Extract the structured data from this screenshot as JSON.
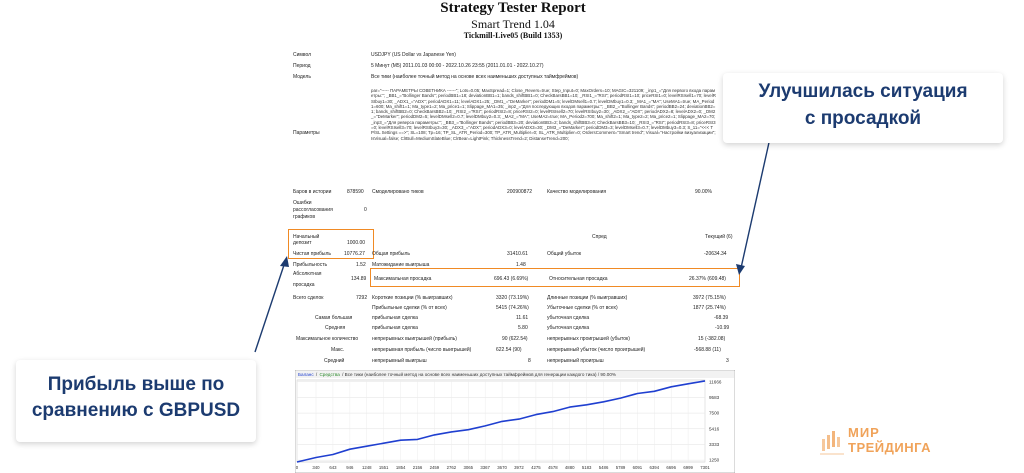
{
  "report": {
    "title": "Strategy Tester Report",
    "subtitle": "Smart Trend 1.04",
    "broker": "Tickmill-Live05 (Build 1353)"
  },
  "info": {
    "symbol_label": "Символ",
    "symbol_value": "USDJPY (US Dollar vs Japanese Yen)",
    "period_label": "Период",
    "period_value": "5 Минут (M5) 2011.01.03 00:00 - 2022.10.26 23:55 (2011.01.01 - 2022.10.27)",
    "model_label": "Модель",
    "model_value": "Все тики (наиболее точный метод на основе всех наименьших доступных таймфреймов)",
    "params_label": "Параметры",
    "params_value": "par=\"----- ПАРАМЕТРЫ СОВЕТНИКА ------\"; Lots=0.05; MaxSpread=1; Close_Revers=true; Step_Input=0; MaxOrders=10; MAGIC=321109; _inp1_=\"Для первого входа параметры:\"; _BB1_=\"Bollinger Bands\"; periodBB1=18; deviationBB1=1; bands_shiftBB1=0; CheckBarsBB1=10; _RSI1_=\"RSI\"; periodRSI1=10; priceRSI1=0; levelRSIsell1=70; levelRSIbuy1=30; _ADX1_=\"ADX\"; periodADX1=11; levelADX1=25; _DM1_=\"DeMarker\"; periodDM1=5; levelDMsell1=0.7; levelDMbuy1=0.3; _MA1_=\"MA\"; UseMA1=true; MA_Period1=600; Ma_shift1=1; Ma_type1=2; Ma_price1=1; Slippage_MA1=35; _inp2_=\"Для последующих входов параметры:\"; _BB2_=\"Bollinger Bands\"; periodBB2=24; deviationBB2=1; bands_shiftBB2=0; CheckBarsBB2=10; _RSI2_=\"RSI\"; periodRSI2=8; priceRSI2=0; levelRSIsell2=70; levelRSIbuy2=30; _ADX2_=\"ADX\"; periodADX2=8; levelADX2=0; _DM2_=\"DeMarker\"; periodDM2=5; levelDMsell2=0.7; levelDMbuy2=0.3; _MA2_=\"MA\"; UseMA2=true; MA_Period2=700; Ma_shift2=1; Ma_type2=2; Ma_price2=1; Slippage_MA2=70; _inp3_=\"Для реверса параметры:\"; _BB3_=\"Bollinger Bands\"; periodBB3=20; deviationBB3=2; bands_shiftBB3=0; CheckBarsBB3=10; _RSI3_=\"RSI\"; periodRSI3=8; priceRSI3=0; levelRSIsell3=70; levelRSIbuy3=30; _ADX3_=\"ADX\"; periodADX3=0; levelADX3=30; _DM3_=\"DeMarker\"; periodDM3=3; levelDMsell3=0.7; levelDMbuy3=0.3; S_11=\"<<< TP/SL Settings ==>\"; SL=108; Tp=16; TP_SL_ATR_Period=300; TP_ATR_Multiplier=0; SL_ATR_Multiplier=0; OrdersComment=\"Smart trend\"; Visual=\"Настройки визуализации\"; IsVisual=false; ClrBull=MediumSlateBlue; ClrBear=LightPink; ThicknessTrend=2; DistanseTrend=200;",
    "bars_label": "Баров в истории",
    "bars_value": "878590",
    "ticks_label": "Смоделировано тиков",
    "ticks_value": "200900872",
    "quality_label": "Качество моделирования",
    "quality_value": "90.00%",
    "errors_label_1": "Ошибки",
    "errors_label_2": "рассогласования",
    "errors_label_3": "графиков",
    "errors_value": "0"
  },
  "stats": {
    "deposit_label_1": "Начальный",
    "deposit_label_2": "депозит",
    "deposit_value": "1000.00",
    "spread_label": "Спред",
    "spread_value": "Текущий (6)",
    "net_profit_label": "Чистая прибыль",
    "net_profit_value": "10776.27",
    "gross_profit_label": "Общая прибыль",
    "gross_profit_value": "31410.61",
    "gross_loss_label": "Общий убыток",
    "gross_loss_value": "-20634.34",
    "profit_factor_label": "Прибыльность",
    "profit_factor_value": "1.52",
    "expected_payoff_label": "Матожидание выигрыша",
    "expected_payoff_value": "1.48",
    "abs_dd_label_1": "Абсолютная",
    "abs_dd_label_2": "просадка",
    "abs_dd_value": "134.89",
    "max_dd_label": "Максимальная просадка",
    "max_dd_value": "696.43 (6.69%)",
    "rel_dd_label": "Относительная просадка",
    "rel_dd_value": "26.37% (609.48)",
    "total_trades_label": "Всего сделок",
    "total_trades_value": "7292",
    "short_label": "Короткие позиции (% выигравших)",
    "short_value": "3320 (73.19%)",
    "long_label": "Длинные позиции (% выигравших)",
    "long_value": "3972 (75.15%)",
    "profit_trades_label": "Прибыльные сделки (% от всех)",
    "profit_trades_value": "5415 (74.26%)",
    "loss_trades_label": "Убыточные сделки (% от всех)",
    "loss_trades_value": "1877 (25.74%)",
    "largest_label": "Самая большая",
    "largest_profit_label": "прибыльная сделка",
    "largest_profit_value": "11.61",
    "largest_loss_label": "убыточная сделка",
    "largest_loss_value": "-68.39",
    "average_label": "Средняя",
    "average_profit_label": "прибыльная сделка",
    "average_profit_value": "5.80",
    "average_loss_label": "убыточная сделка",
    "average_loss_value": "-10.99",
    "max_count_label": "Максимальное количество",
    "max_consec_wins_label": "непрерывных выигрышей (прибыль)",
    "max_consec_wins_value": "90 (622.54)",
    "max_consec_losses_label": "непрерывных проигрышей (убыток)",
    "max_consec_losses_value": "15 (-382.08)",
    "max_label": "Макс.",
    "max_consec_profit_label": "непрерывная прибыль (число выигрышей)",
    "max_consec_profit_value": "622.54 (90)",
    "max_consec_loss_label": "непрерывный убыток (число проигрышей)",
    "max_consec_loss_value": "-568.88 (11)",
    "avg_label": "Средний",
    "avg_consec_wins_label": "непрерывный выигрыш",
    "avg_consec_wins_value": "8",
    "avg_consec_losses_label": "непрерывный проигрыш",
    "avg_consec_losses_value": "3"
  },
  "chart_header": {
    "balance": "Баланс",
    "separator": "/",
    "equity": "Средства",
    "rest": "/ Все тики (наиболее точный метод на основе всех наименьших доступных таймфреймов для генерации каждого тика) / 90.00%"
  },
  "chart_data": {
    "type": "line",
    "x_ticks": [
      "0",
      "340",
      "643",
      "946",
      "1248",
      "1551",
      "1854",
      "2156",
      "2459",
      "2762",
      "3065",
      "3367",
      "3670",
      "3972",
      "4275",
      "4578",
      "4880",
      "5183",
      "5486",
      "5789",
      "6091",
      "6394",
      "6696",
      "6999",
      "7301"
    ],
    "y_ticks": [
      "11666",
      "9583",
      "7500",
      "5416",
      "3333",
      "1250"
    ],
    "ylim": [
      1000,
      11900
    ],
    "xlim": [
      0,
      7301
    ],
    "series": [
      {
        "name": "Баланс",
        "color": "#1f3fd0",
        "x": [
          0,
          340,
          643,
          946,
          1248,
          1551,
          1854,
          2156,
          2459,
          2762,
          3065,
          3367,
          3670,
          3972,
          4275,
          4578,
          4880,
          5183,
          5486,
          5789,
          6091,
          6394,
          6696,
          6999,
          7301
        ],
        "y": [
          1000,
          1600,
          2000,
          2700,
          3100,
          3500,
          3900,
          4000,
          4600,
          5000,
          5300,
          5800,
          6400,
          6700,
          7300,
          7700,
          8300,
          8600,
          9000,
          9500,
          10100,
          10400,
          11000,
          11400,
          11776
        ]
      }
    ]
  },
  "callouts": {
    "left_line1": "Прибыль выше по",
    "left_line2": "сравнению с GBPUSD",
    "right_line1": "Улучшилась ситуация",
    "right_line2": "с просадкой"
  },
  "logo": {
    "line1": "МИР",
    "line2": "ТРЕЙДИНГА"
  },
  "colors": {
    "highlight": "#f08a24",
    "callout_text": "#1c3b70",
    "balance_line": "#1f3fd0",
    "logo": "#f0a35a"
  }
}
